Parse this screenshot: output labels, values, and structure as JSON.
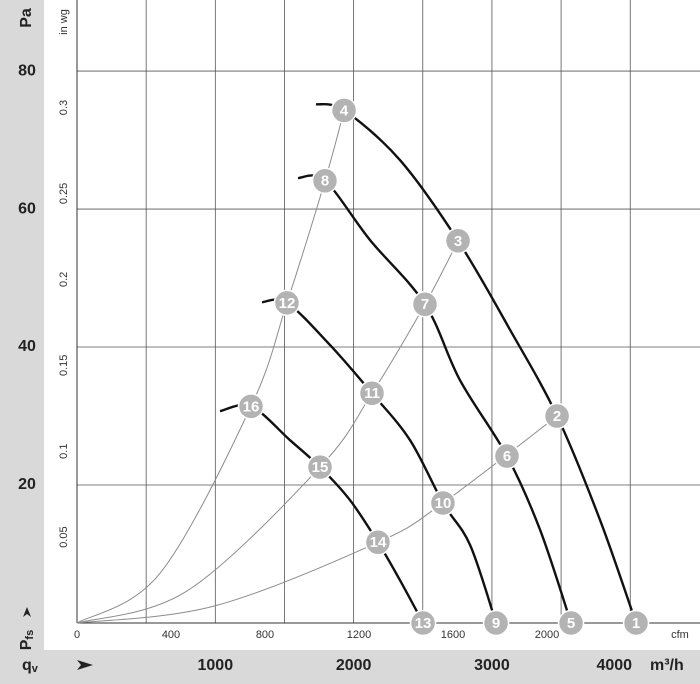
{
  "chart_data": {
    "type": "line",
    "y_unit": "Pa",
    "y2_unit": "in wg",
    "x_unit": "m³/h",
    "x2_unit": "cfm",
    "x_title": {
      "main": "q",
      "sub": "v"
    },
    "y_title": {
      "main": "P",
      "sub": "fs"
    },
    "xlim": [
      0,
      4500
    ],
    "ylim": [
      0,
      90.3
    ],
    "x2lim": [
      0,
      2648.6
    ],
    "y2lim": [
      0,
      0.3626
    ],
    "xticks": [
      1000,
      2000,
      3000,
      4000
    ],
    "yticks": [
      20,
      40,
      60,
      80
    ],
    "x2ticks": [
      0,
      400,
      800,
      1200,
      1600,
      2000
    ],
    "y2ticks": [
      0.05,
      0.1,
      0.15,
      0.2,
      0.25,
      0.3
    ],
    "xgrid": [
      500,
      1000,
      1500,
      2000,
      2500,
      3000,
      3500,
      4000
    ],
    "grid": true,
    "series": [
      {
        "color": "#111111",
        "x": [
          1728,
          1931,
          2335,
          2755,
          3131,
          3471,
          3782,
          4042
        ],
        "values": [
          75.2,
          74.3,
          67.1,
          55.4,
          42.5,
          30.0,
          14.9,
          0
        ]
      },
      {
        "color": "#111111",
        "x": [
          1598,
          1793,
          2119,
          2516,
          2769,
          3109,
          3348,
          3572
        ],
        "values": [
          64.5,
          64.1,
          55.5,
          46.2,
          35.2,
          24.2,
          13.5,
          0
        ]
      },
      {
        "color": "#111111",
        "x": [
          1338,
          1518,
          1829,
          2133,
          2408,
          2646,
          2842,
          3030
        ],
        "values": [
          46.5,
          46.4,
          40.3,
          33.3,
          26.5,
          17.4,
          11.3,
          0
        ]
      },
      {
        "color": "#111111",
        "x": [
          1034,
          1258,
          1540,
          1757,
          1974,
          2176,
          2335,
          2502
        ],
        "values": [
          30.7,
          31.4,
          26.5,
          22.6,
          17.8,
          11.7,
          6.2,
          0
        ]
      }
    ],
    "system_curves": [
      {
        "color": "#8c8c8c",
        "x": [
          0,
          1000,
          2176,
          2646,
          3471
        ],
        "values": [
          0,
          2.5,
          11.7,
          17.4,
          30.0
        ]
      },
      {
        "color": "#8c8c8c",
        "x": [
          0,
          800,
          1757,
          2133,
          2516,
          2755
        ],
        "values": [
          0,
          4.7,
          22.6,
          33.3,
          46.2,
          55.4
        ]
      },
      {
        "color": "#8c8c8c",
        "x": [
          0,
          600,
          1258,
          1518,
          1793,
          1931
        ],
        "values": [
          0,
          7.2,
          31.4,
          46.4,
          64.1,
          74.3
        ]
      }
    ],
    "point_color": "#b3b3b3",
    "points": [
      {
        "label": "1",
        "x": 4042,
        "y": 0
      },
      {
        "label": "2",
        "x": 3471,
        "y": 30.0
      },
      {
        "label": "3",
        "x": 2755,
        "y": 55.4
      },
      {
        "label": "4",
        "x": 1931,
        "y": 74.3
      },
      {
        "label": "5",
        "x": 3572,
        "y": 0
      },
      {
        "label": "6",
        "x": 3109,
        "y": 24.2
      },
      {
        "label": "7",
        "x": 2516,
        "y": 46.2
      },
      {
        "label": "8",
        "x": 1793,
        "y": 64.1
      },
      {
        "label": "9",
        "x": 3030,
        "y": 0
      },
      {
        "label": "10",
        "x": 2646,
        "y": 17.4
      },
      {
        "label": "11",
        "x": 2133,
        "y": 33.3
      },
      {
        "label": "12",
        "x": 1518,
        "y": 46.4
      },
      {
        "label": "13",
        "x": 2502,
        "y": 0
      },
      {
        "label": "14",
        "x": 2176,
        "y": 11.7
      },
      {
        "label": "15",
        "x": 1757,
        "y": 22.6
      },
      {
        "label": "16",
        "x": 1258,
        "y": 31.4
      }
    ]
  }
}
